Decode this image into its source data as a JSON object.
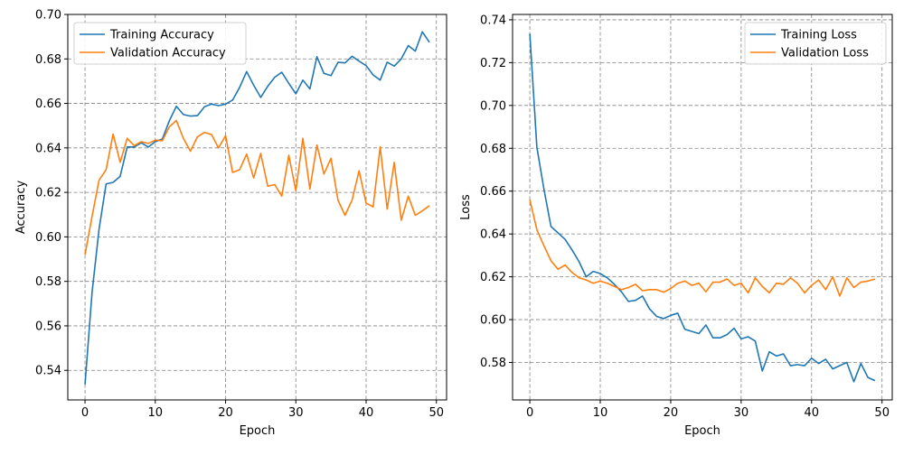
{
  "chart_data": [
    {
      "type": "line",
      "xlabel": "Epoch",
      "ylabel": "Accuracy",
      "xlim": [
        -2.45,
        51.45
      ],
      "ylim": [
        0.5267,
        0.7
      ],
      "xticks": [
        0,
        10,
        20,
        30,
        40,
        50
      ],
      "xtick_labels": [
        "0",
        "10",
        "20",
        "30",
        "40",
        "50"
      ],
      "yticks": [
        0.54,
        0.56,
        0.58,
        0.6,
        0.62,
        0.64,
        0.66,
        0.68,
        0.7
      ],
      "ytick_labels": [
        "0.54",
        "0.56",
        "0.58",
        "0.60",
        "0.62",
        "0.64",
        "0.66",
        "0.68",
        "0.70"
      ],
      "grid": true,
      "legend_position": "top-left",
      "x": [
        0,
        1,
        2,
        3,
        4,
        5,
        6,
        7,
        8,
        9,
        10,
        11,
        12,
        13,
        14,
        15,
        16,
        17,
        18,
        19,
        20,
        21,
        22,
        23,
        24,
        25,
        26,
        27,
        28,
        29,
        30,
        31,
        32,
        33,
        34,
        35,
        36,
        37,
        38,
        39,
        40,
        41,
        42,
        43,
        44,
        45,
        46,
        47,
        48,
        49
      ],
      "series": [
        {
          "name": "Training Accuracy",
          "color": "#1f77b4",
          "values": [
            0.5337,
            0.575,
            0.6035,
            0.6238,
            0.6245,
            0.6272,
            0.6404,
            0.6404,
            0.6423,
            0.6404,
            0.6428,
            0.644,
            0.6522,
            0.6587,
            0.655,
            0.6543,
            0.6545,
            0.6585,
            0.6597,
            0.659,
            0.6597,
            0.6615,
            0.6672,
            0.6743,
            0.6682,
            0.6627,
            0.6677,
            0.6718,
            0.674,
            0.669,
            0.6643,
            0.6705,
            0.6665,
            0.681,
            0.6735,
            0.6725,
            0.6785,
            0.6782,
            0.6812,
            0.679,
            0.677,
            0.6728,
            0.6705,
            0.6785,
            0.6768,
            0.68,
            0.686,
            0.6835,
            0.6922,
            0.6875
          ]
        },
        {
          "name": "Validation Accuracy",
          "color": "#ff7f0e",
          "values": [
            0.592,
            0.6092,
            0.6255,
            0.6302,
            0.6462,
            0.6335,
            0.6443,
            0.641,
            0.6428,
            0.642,
            0.6435,
            0.6432,
            0.6495,
            0.6523,
            0.6443,
            0.6385,
            0.645,
            0.647,
            0.646,
            0.64,
            0.6455,
            0.629,
            0.6302,
            0.6372,
            0.6265,
            0.6375,
            0.6228,
            0.6235,
            0.6183,
            0.6367,
            0.6207,
            0.6443,
            0.6215,
            0.6413,
            0.6283,
            0.6353,
            0.6165,
            0.6097,
            0.6165,
            0.6297,
            0.6152,
            0.6135,
            0.6405,
            0.6125,
            0.6335,
            0.6075,
            0.6183,
            0.6097,
            0.6117,
            0.614
          ]
        }
      ]
    },
    {
      "type": "line",
      "xlabel": "Epoch",
      "ylabel": "Loss",
      "xlim": [
        -2.45,
        51.45
      ],
      "ylim": [
        0.5625,
        0.7425
      ],
      "xticks": [
        0,
        10,
        20,
        30,
        40,
        50
      ],
      "xtick_labels": [
        "0",
        "10",
        "20",
        "30",
        "40",
        "50"
      ],
      "yticks": [
        0.58,
        0.6,
        0.62,
        0.64,
        0.66,
        0.68,
        0.7,
        0.72,
        0.74
      ],
      "ytick_labels": [
        "0.58",
        "0.60",
        "0.62",
        "0.64",
        "0.66",
        "0.68",
        "0.70",
        "0.72",
        "0.74"
      ],
      "grid": true,
      "legend_position": "top-right",
      "x": [
        0,
        1,
        2,
        3,
        4,
        5,
        6,
        7,
        8,
        9,
        10,
        11,
        12,
        13,
        14,
        15,
        16,
        17,
        18,
        19,
        20,
        21,
        22,
        23,
        24,
        25,
        26,
        27,
        28,
        29,
        30,
        31,
        32,
        33,
        34,
        35,
        36,
        37,
        38,
        39,
        40,
        41,
        42,
        43,
        44,
        45,
        46,
        47,
        48,
        49
      ],
      "series": [
        {
          "name": "Training Loss",
          "color": "#1f77b4",
          "values": [
            0.7335,
            0.6805,
            0.661,
            0.6435,
            0.6405,
            0.6375,
            0.6325,
            0.627,
            0.62,
            0.6225,
            0.6215,
            0.6195,
            0.6165,
            0.613,
            0.6085,
            0.609,
            0.611,
            0.605,
            0.6015,
            0.6005,
            0.602,
            0.603,
            0.5955,
            0.5945,
            0.5935,
            0.5975,
            0.5915,
            0.5915,
            0.593,
            0.596,
            0.591,
            0.592,
            0.59,
            0.576,
            0.585,
            0.583,
            0.584,
            0.5785,
            0.579,
            0.5785,
            0.582,
            0.5795,
            0.5815,
            0.577,
            0.5785,
            0.58,
            0.571,
            0.5795,
            0.573,
            0.5715
          ]
        },
        {
          "name": "Validation Loss",
          "color": "#ff7f0e",
          "values": [
            0.656,
            0.642,
            0.6345,
            0.6275,
            0.6235,
            0.6255,
            0.622,
            0.6195,
            0.6185,
            0.617,
            0.618,
            0.617,
            0.6155,
            0.614,
            0.615,
            0.6165,
            0.6135,
            0.614,
            0.614,
            0.6128,
            0.6145,
            0.617,
            0.618,
            0.616,
            0.617,
            0.613,
            0.6175,
            0.6175,
            0.619,
            0.616,
            0.617,
            0.6125,
            0.6195,
            0.6155,
            0.6125,
            0.617,
            0.6165,
            0.6195,
            0.617,
            0.6125,
            0.616,
            0.6185,
            0.614,
            0.62,
            0.611,
            0.6195,
            0.615,
            0.6175,
            0.618,
            0.619
          ]
        }
      ]
    }
  ]
}
